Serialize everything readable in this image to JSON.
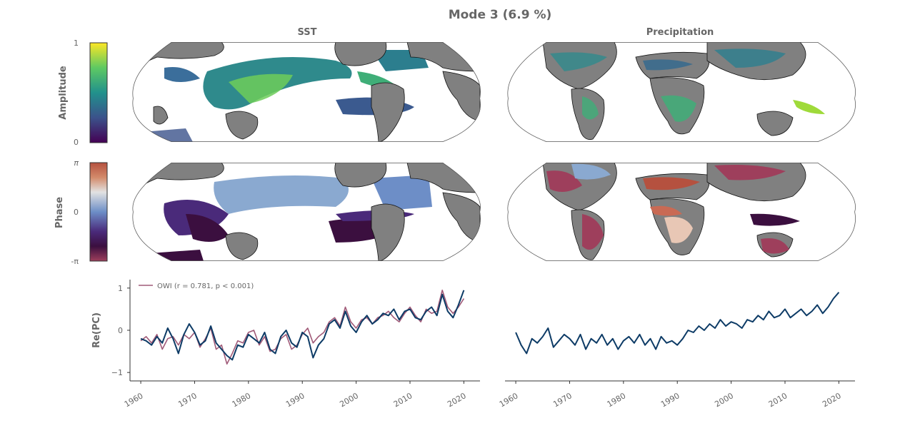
{
  "figure": {
    "title": "Mode 3 (6.9 %)",
    "columns": [
      "SST",
      "Precipitation"
    ],
    "amplitude_colorbar": {
      "label": "Amplitude",
      "ticks": [
        "1",
        "0"
      ],
      "colormap": "viridis"
    },
    "phase_colorbar": {
      "label": "Phase",
      "ticks": [
        "π",
        "0",
        "-π"
      ],
      "colormap": "twilight-shifted"
    },
    "land_color": "#808080",
    "map_projection": "robinson-like"
  },
  "chart_data": [
    {
      "type": "line",
      "panel": "SST",
      "ylabel": "Re(PC)",
      "xlim": [
        1958,
        2023
      ],
      "ylim": [
        -1.2,
        1.2
      ],
      "yticks": [
        -1,
        0,
        1
      ],
      "ytick_labels": [
        "−1",
        "0",
        "1"
      ],
      "xticks": [
        1960,
        1970,
        1980,
        1990,
        2000,
        2010,
        2020
      ],
      "xtick_labels": [
        "1960",
        "1970",
        "1980",
        "1990",
        "2000",
        "2010",
        "2020"
      ],
      "legend": {
        "placement": "top-left",
        "text": "OWI (r = 0.781, p < 0.001)"
      },
      "series": [
        {
          "name": "OWI (r = 0.781, p < 0.001)",
          "color": "#a05a78",
          "x": [
            1960,
            1961,
            1962,
            1963,
            1964,
            1965,
            1966,
            1967,
            1968,
            1969,
            1970,
            1971,
            1972,
            1973,
            1974,
            1975,
            1976,
            1977,
            1978,
            1979,
            1980,
            1981,
            1982,
            1983,
            1984,
            1985,
            1986,
            1987,
            1988,
            1989,
            1990,
            1991,
            1992,
            1993,
            1994,
            1995,
            1996,
            1997,
            1998,
            1999,
            2000,
            2001,
            2002,
            2003,
            2004,
            2005,
            2006,
            2007,
            2008,
            2009,
            2010,
            2011,
            2012,
            2013,
            2014,
            2015,
            2016,
            2017,
            2018,
            2019,
            2020
          ],
          "y": [
            -0.25,
            -0.15,
            -0.3,
            -0.1,
            -0.45,
            -0.2,
            -0.15,
            -0.35,
            -0.1,
            -0.2,
            -0.05,
            -0.4,
            -0.2,
            0.05,
            -0.45,
            -0.35,
            -0.8,
            -0.55,
            -0.25,
            -0.3,
            -0.05,
            0.0,
            -0.35,
            -0.15,
            -0.5,
            -0.45,
            -0.2,
            -0.1,
            -0.45,
            -0.35,
            -0.1,
            0.05,
            -0.3,
            -0.15,
            -0.05,
            0.2,
            0.3,
            0.1,
            0.55,
            0.2,
            0.05,
            0.25,
            0.3,
            0.15,
            0.3,
            0.35,
            0.45,
            0.3,
            0.2,
            0.4,
            0.55,
            0.35,
            0.2,
            0.5,
            0.4,
            0.45,
            0.95,
            0.55,
            0.4,
            0.55,
            0.75
          ]
        },
        {
          "name": "",
          "color": "#0d3b66",
          "x": [
            1960,
            1961,
            1962,
            1963,
            1964,
            1965,
            1966,
            1967,
            1968,
            1969,
            1970,
            1971,
            1972,
            1973,
            1974,
            1975,
            1976,
            1977,
            1978,
            1979,
            1980,
            1981,
            1982,
            1983,
            1984,
            1985,
            1986,
            1987,
            1988,
            1989,
            1990,
            1991,
            1992,
            1993,
            1994,
            1995,
            1996,
            1997,
            1998,
            1999,
            2000,
            2001,
            2002,
            2003,
            2004,
            2005,
            2006,
            2007,
            2008,
            2009,
            2010,
            2011,
            2012,
            2013,
            2014,
            2015,
            2016,
            2017,
            2018,
            2019,
            2020
          ],
          "y": [
            -0.2,
            -0.25,
            -0.35,
            -0.15,
            -0.3,
            0.05,
            -0.2,
            -0.55,
            -0.1,
            0.15,
            -0.05,
            -0.35,
            -0.25,
            0.1,
            -0.3,
            -0.45,
            -0.6,
            -0.7,
            -0.35,
            -0.4,
            -0.1,
            -0.2,
            -0.3,
            -0.05,
            -0.45,
            -0.55,
            -0.15,
            0.0,
            -0.3,
            -0.4,
            -0.05,
            -0.15,
            -0.65,
            -0.35,
            -0.2,
            0.15,
            0.25,
            0.05,
            0.45,
            0.1,
            -0.05,
            0.2,
            0.35,
            0.15,
            0.25,
            0.4,
            0.35,
            0.5,
            0.25,
            0.45,
            0.5,
            0.3,
            0.25,
            0.45,
            0.55,
            0.35,
            0.85,
            0.45,
            0.3,
            0.6,
            0.95
          ]
        }
      ]
    },
    {
      "type": "line",
      "panel": "Precipitation",
      "ylabel": "",
      "xlim": [
        1958,
        2023
      ],
      "ylim": [
        -1.2,
        1.2
      ],
      "xticks": [
        1960,
        1970,
        1980,
        1990,
        2000,
        2010,
        2020
      ],
      "xtick_labels": [
        "1960",
        "1970",
        "1980",
        "1990",
        "2000",
        "2010",
        "2020"
      ],
      "series": [
        {
          "name": "",
          "color": "#0d3b66",
          "x": [
            1960,
            1961,
            1962,
            1963,
            1964,
            1965,
            1966,
            1967,
            1968,
            1969,
            1970,
            1971,
            1972,
            1973,
            1974,
            1975,
            1976,
            1977,
            1978,
            1979,
            1980,
            1981,
            1982,
            1983,
            1984,
            1985,
            1986,
            1987,
            1988,
            1989,
            1990,
            1991,
            1992,
            1993,
            1994,
            1995,
            1996,
            1997,
            1998,
            1999,
            2000,
            2001,
            2002,
            2003,
            2004,
            2005,
            2006,
            2007,
            2008,
            2009,
            2010,
            2011,
            2012,
            2013,
            2014,
            2015,
            2016,
            2017,
            2018,
            2019,
            2020
          ],
          "y": [
            -0.05,
            -0.35,
            -0.55,
            -0.2,
            -0.3,
            -0.15,
            0.05,
            -0.4,
            -0.25,
            -0.1,
            -0.2,
            -0.35,
            -0.1,
            -0.45,
            -0.2,
            -0.3,
            -0.1,
            -0.35,
            -0.2,
            -0.45,
            -0.25,
            -0.15,
            -0.3,
            -0.1,
            -0.35,
            -0.2,
            -0.45,
            -0.15,
            -0.3,
            -0.25,
            -0.35,
            -0.2,
            0.0,
            -0.05,
            0.1,
            0.0,
            0.15,
            0.05,
            0.25,
            0.1,
            0.2,
            0.15,
            0.05,
            0.25,
            0.2,
            0.35,
            0.25,
            0.45,
            0.3,
            0.35,
            0.5,
            0.3,
            0.4,
            0.5,
            0.35,
            0.45,
            0.6,
            0.4,
            0.55,
            0.75,
            0.9
          ]
        }
      ]
    }
  ]
}
